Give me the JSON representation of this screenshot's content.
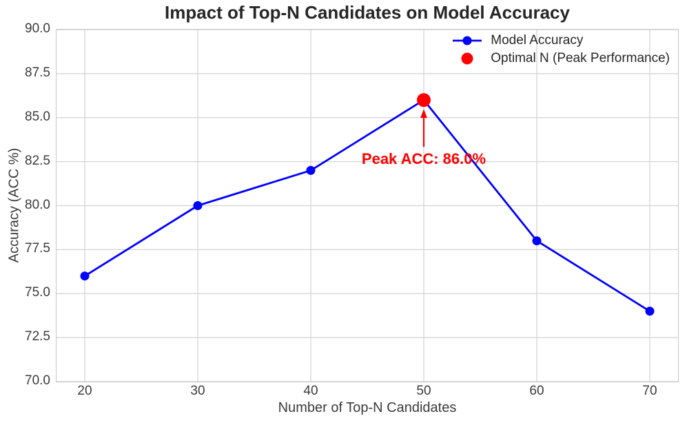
{
  "chart_data": {
    "type": "line",
    "title": "Impact of Top-N Candidates on Model Accuracy",
    "xlabel": "Number of Top-N Candidates",
    "ylabel": "Accuracy (ACC %)",
    "x": [
      20,
      30,
      40,
      50,
      60,
      70
    ],
    "series": [
      {
        "name": "Model Accuracy",
        "values": [
          76,
          80,
          82,
          86,
          78,
          74
        ],
        "color": "#0000ff",
        "marker": "circle"
      }
    ],
    "peak_point": {
      "label": "Optimal N (Peak Performance)",
      "x": 50,
      "y": 86,
      "color": "#ff0000"
    },
    "annotation": {
      "text": "Peak ACC: 86.0%",
      "x": 50,
      "y": 86,
      "color": "#ff0000",
      "arrow": true
    },
    "xlim": [
      17.5,
      72.5
    ],
    "ylim": [
      70.0,
      90.0
    ],
    "xticks": {
      "values": [
        20,
        30,
        40,
        50,
        60,
        70
      ],
      "labels": [
        "20",
        "30",
        "40",
        "50",
        "60",
        "70"
      ]
    },
    "yticks": {
      "values": [
        70.0,
        72.5,
        75.0,
        77.5,
        80.0,
        82.5,
        85.0,
        87.5,
        90.0
      ],
      "labels": [
        "70.0",
        "72.5",
        "75.0",
        "77.5",
        "80.0",
        "82.5",
        "85.0",
        "87.5",
        "90.0"
      ]
    },
    "grid": true,
    "legend": {
      "position": "upper right",
      "entries": [
        {
          "label": "Model Accuracy",
          "marker": "line-dot",
          "color": "#0000ff"
        },
        {
          "label": "Optimal N (Peak Performance)",
          "marker": "dot",
          "color": "#ff0000"
        }
      ]
    }
  },
  "colors": {
    "line": "#0000ff",
    "peak": "#ff0000",
    "grid": "#d2d2d2",
    "spine": "#c6c6c6",
    "title_text": "#262626",
    "tick_text": "#3a3a3a"
  }
}
